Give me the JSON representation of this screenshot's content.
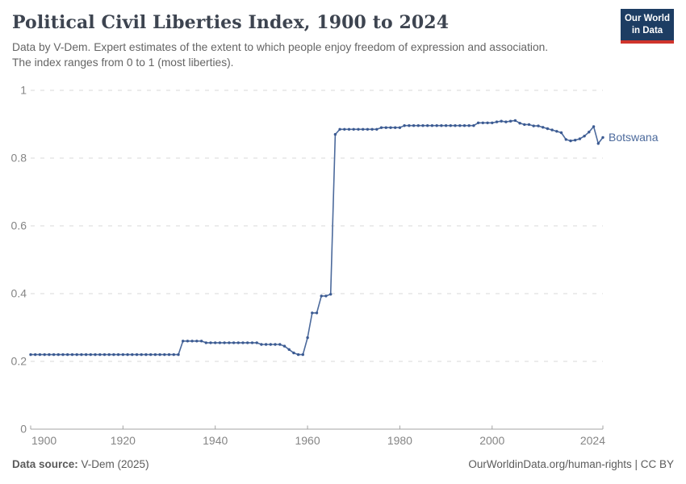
{
  "header": {
    "title": "Political Civil Liberties Index, 1900 to 2024",
    "subtitle_lines": [
      "Data by V-Dem. Expert estimates of the extent to which people enjoy freedom of expression and association.",
      "The index ranges from 0 to 1 (most liberties)."
    ],
    "logo": {
      "line1": "Our World",
      "line2": "in Data"
    }
  },
  "footer": {
    "source_label": "Data source:",
    "source_value": " V-Dem (2025)",
    "right_text": "OurWorldinData.org/human-rights | CC BY"
  },
  "colors": {
    "line": "#4C6A9C",
    "marker": "#3B5A92",
    "entity_label": "#4C6A9C",
    "gridline": "#d9d9d9",
    "axis": "#a3a3a3",
    "axis_label": "#858585",
    "logo_bg": "#1d3d63",
    "logo_red": "#d0342c"
  },
  "chart_data": {
    "type": "line",
    "title": "Political Civil Liberties Index, 1900 to 2024",
    "xlabel": "",
    "ylabel": "",
    "xlim": [
      1900,
      2024
    ],
    "ylim": [
      0,
      1
    ],
    "x_ticks": [
      1900,
      1920,
      1940,
      1960,
      1980,
      2000,
      2024
    ],
    "y_ticks": [
      0,
      0.2,
      0.4,
      0.6,
      0.8,
      1
    ],
    "grid": "horizontal-dashed",
    "legend_position": "end-of-line-label",
    "markers": true,
    "series": [
      {
        "name": "Botswana",
        "color": "#4C6A9C",
        "years": [
          1900,
          1901,
          1902,
          1903,
          1904,
          1905,
          1906,
          1907,
          1908,
          1909,
          1910,
          1911,
          1912,
          1913,
          1914,
          1915,
          1916,
          1917,
          1918,
          1919,
          1920,
          1921,
          1922,
          1923,
          1924,
          1925,
          1926,
          1927,
          1928,
          1929,
          1930,
          1931,
          1932,
          1933,
          1934,
          1935,
          1936,
          1937,
          1938,
          1939,
          1940,
          1941,
          1942,
          1943,
          1944,
          1945,
          1946,
          1947,
          1948,
          1949,
          1950,
          1951,
          1952,
          1953,
          1954,
          1955,
          1956,
          1957,
          1958,
          1959,
          1960,
          1961,
          1962,
          1963,
          1964,
          1965,
          1966,
          1967,
          1968,
          1969,
          1970,
          1971,
          1972,
          1973,
          1974,
          1975,
          1976,
          1977,
          1978,
          1979,
          1980,
          1981,
          1982,
          1983,
          1984,
          1985,
          1986,
          1987,
          1988,
          1989,
          1990,
          1991,
          1992,
          1993,
          1994,
          1995,
          1996,
          1997,
          1998,
          1999,
          2000,
          2001,
          2002,
          2003,
          2004,
          2005,
          2006,
          2007,
          2008,
          2009,
          2010,
          2011,
          2012,
          2013,
          2014,
          2015,
          2016,
          2017,
          2018,
          2019,
          2020,
          2021,
          2022,
          2023,
          2024
        ],
        "values": [
          0.22,
          0.22,
          0.22,
          0.22,
          0.22,
          0.22,
          0.22,
          0.22,
          0.22,
          0.22,
          0.22,
          0.22,
          0.22,
          0.22,
          0.22,
          0.22,
          0.22,
          0.22,
          0.22,
          0.22,
          0.22,
          0.22,
          0.22,
          0.22,
          0.22,
          0.22,
          0.22,
          0.22,
          0.22,
          0.22,
          0.22,
          0.22,
          0.22,
          0.26,
          0.26,
          0.26,
          0.26,
          0.26,
          0.255,
          0.255,
          0.255,
          0.255,
          0.255,
          0.255,
          0.255,
          0.255,
          0.255,
          0.255,
          0.255,
          0.255,
          0.25,
          0.25,
          0.25,
          0.25,
          0.25,
          0.245,
          0.235,
          0.225,
          0.22,
          0.22,
          0.27,
          0.343,
          0.343,
          0.393,
          0.393,
          0.398,
          0.87,
          0.885,
          0.885,
          0.885,
          0.885,
          0.885,
          0.885,
          0.885,
          0.885,
          0.885,
          0.89,
          0.89,
          0.89,
          0.89,
          0.89,
          0.896,
          0.896,
          0.896,
          0.896,
          0.896,
          0.896,
          0.896,
          0.896,
          0.896,
          0.896,
          0.896,
          0.896,
          0.896,
          0.896,
          0.896,
          0.896,
          0.904,
          0.904,
          0.904,
          0.904,
          0.907,
          0.909,
          0.907,
          0.909,
          0.911,
          0.903,
          0.899,
          0.899,
          0.895,
          0.895,
          0.891,
          0.887,
          0.883,
          0.879,
          0.875,
          0.855,
          0.851,
          0.853,
          0.857,
          0.865,
          0.877,
          0.893,
          0.843,
          0.861
        ]
      }
    ]
  }
}
